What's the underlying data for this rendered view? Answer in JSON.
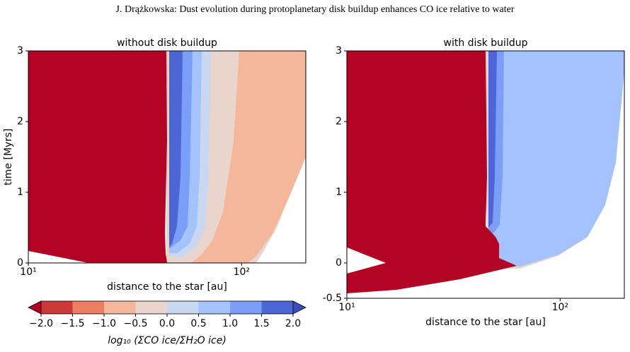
{
  "header": "J. Drążkowska: Dust evolution during protoplanetary disk buildup enhances CO ice relative to water",
  "chart_data": [
    {
      "type": "contour",
      "title": "without disk buildup",
      "x_label": "distance to the star [au]",
      "y_label": "time [Myrs]",
      "xscale": "log",
      "xlim": [
        10,
        200
      ],
      "xticks": [
        {
          "value": 10,
          "label": "10¹"
        },
        {
          "value": 100,
          "label": "10²"
        }
      ],
      "ylim": [
        0,
        3
      ],
      "yticks": [
        0,
        1,
        2,
        3
      ]
    },
    {
      "type": "contour",
      "title": "with disk buildup",
      "x_label": "distance to the star [au]",
      "xscale": "log",
      "xlim": [
        10,
        200
      ],
      "xticks": [
        {
          "value": 10,
          "label": "10¹"
        },
        {
          "value": 100,
          "label": "10²"
        }
      ],
      "ylim": [
        -0.5,
        3
      ],
      "yticks": [
        -0.5,
        0,
        1,
        2,
        3
      ]
    }
  ],
  "colorbar": {
    "label": "log₁₀ (ΣCO ice/ΣH₂O ice)",
    "ticks": [
      {
        "value": -2,
        "label": "−2.0"
      },
      {
        "value": -1.5,
        "label": "−1.5"
      },
      {
        "value": -1,
        "label": "−1.0"
      },
      {
        "value": -0.5,
        "label": "−0.5"
      },
      {
        "value": 0,
        "label": "0.0"
      },
      {
        "value": 0.5,
        "label": "0.5"
      },
      {
        "value": 1,
        "label": "1.0"
      },
      {
        "value": 1.5,
        "label": "1.5"
      },
      {
        "value": 2,
        "label": "2.0"
      }
    ],
    "colors": [
      "#cb3a36",
      "#ec7f63",
      "#f4b79c",
      "#e9d5cb",
      "#c9d7f0",
      "#a4c2fe",
      "#7b9ff9",
      "#4c66d6"
    ],
    "under_color": "#b40426",
    "over_color": "#3b4cc0"
  }
}
